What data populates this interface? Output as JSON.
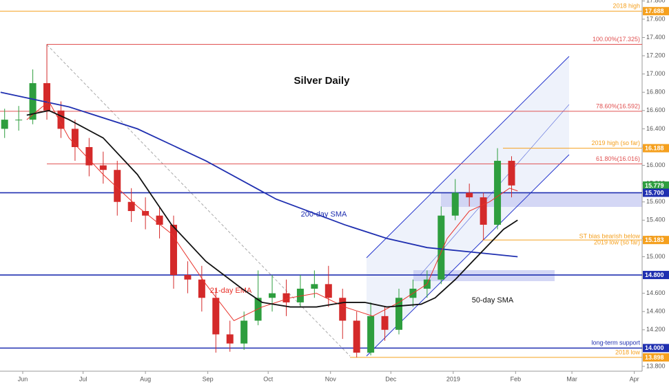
{
  "chart_data": {
    "type": "candlestick",
    "title": "Silver Daily",
    "x": [
      -9,
      -2,
      5,
      12,
      19,
      26,
      33,
      40,
      47,
      54,
      61,
      68,
      75,
      82,
      89,
      96,
      103,
      110,
      117,
      124,
      131,
      138,
      145,
      152,
      159,
      166,
      173,
      180,
      187,
      194,
      201,
      208,
      215,
      222,
      229,
      236,
      243
    ],
    "open": [
      16.4,
      16.5,
      16.5,
      16.9,
      16.6,
      16.4,
      16.2,
      16.0,
      15.95,
      15.6,
      15.5,
      15.45,
      15.35,
      14.8,
      14.75,
      14.55,
      14.15,
      14.05,
      14.3,
      14.55,
      14.6,
      14.5,
      14.65,
      14.7,
      14.55,
      14.3,
      13.95,
      14.35,
      14.2,
      14.55,
      14.65,
      14.75,
      15.45,
      15.7,
      15.65,
      15.35,
      16.05
    ],
    "high": [
      16.62,
      16.65,
      17.05,
      17.325,
      16.7,
      16.5,
      16.3,
      16.15,
      16.05,
      15.75,
      15.65,
      15.55,
      15.45,
      14.95,
      14.9,
      14.65,
      14.3,
      14.4,
      14.85,
      14.8,
      14.75,
      14.8,
      14.85,
      14.9,
      14.65,
      14.4,
      14.5,
      14.45,
      14.65,
      14.75,
      14.85,
      15.55,
      15.85,
      15.8,
      15.7,
      16.188,
      16.1
    ],
    "low": [
      16.3,
      16.38,
      16.45,
      16.5,
      16.3,
      16.05,
      15.88,
      15.8,
      15.45,
      15.38,
      15.3,
      15.2,
      14.65,
      14.6,
      14.4,
      13.95,
      13.96,
      13.98,
      14.25,
      14.4,
      14.35,
      14.45,
      14.55,
      14.45,
      14.1,
      13.898,
      13.92,
      14.08,
      14.15,
      14.45,
      14.55,
      14.7,
      15.4,
      15.55,
      15.183,
      15.3,
      15.65
    ],
    "close": [
      16.5,
      16.5,
      16.9,
      16.6,
      16.4,
      16.2,
      16.0,
      15.95,
      15.6,
      15.5,
      15.45,
      15.35,
      14.8,
      14.75,
      14.55,
      14.15,
      14.05,
      14.3,
      14.55,
      14.6,
      14.5,
      14.65,
      14.7,
      14.55,
      14.3,
      13.95,
      14.35,
      14.2,
      14.55,
      14.65,
      14.75,
      15.45,
      15.7,
      15.65,
      15.35,
      16.05,
      15.78
    ],
    "up_color": "#2e9e3e",
    "down_color": "#d42a2a",
    "series": [
      {
        "name": "200-day SMA",
        "color": "#1f2fb0",
        "x": [
          -11,
          23,
          57,
          91,
          126,
          160,
          181,
          201,
          228,
          246
        ],
        "values": [
          16.8,
          16.64,
          16.4,
          16.05,
          15.63,
          15.35,
          15.2,
          15.1,
          15.04,
          15.0
        ]
      },
      {
        "name": "21-day EMA",
        "color": "#e8322a",
        "x": [
          2,
          13,
          23,
          40,
          57,
          74,
          91,
          105,
          119,
          133,
          146,
          160,
          174,
          187,
          201,
          211,
          222,
          232,
          242,
          246
        ],
        "values": [
          16.5,
          16.7,
          16.3,
          15.9,
          15.55,
          15.25,
          14.7,
          14.3,
          14.45,
          14.55,
          14.6,
          14.45,
          14.35,
          14.5,
          14.7,
          15.2,
          15.5,
          15.6,
          15.75,
          15.72
        ]
      },
      {
        "name": "50-day SMA",
        "color": "#111111",
        "x": [
          2,
          13,
          23,
          40,
          57,
          74,
          91,
          109,
          119,
          133,
          146,
          160,
          170,
          181,
          198,
          205,
          215,
          228,
          239,
          246
        ],
        "values": [
          16.55,
          16.6,
          16.5,
          16.3,
          15.9,
          15.35,
          14.95,
          14.65,
          14.5,
          14.45,
          14.45,
          14.5,
          14.5,
          14.45,
          14.48,
          14.55,
          14.75,
          15.05,
          15.3,
          15.4
        ]
      }
    ],
    "levels": [
      {
        "value": 17.688,
        "label": "17.688",
        "name": "2018 high",
        "color": "#f5a01e"
      },
      {
        "value": 17.325,
        "name": "100.00%(17.325)",
        "color": "#e05050"
      },
      {
        "value": 16.592,
        "name": "78.60%(16.592)",
        "color": "#e05050"
      },
      {
        "value": 16.188,
        "label": "16.188",
        "name": "2019 high (so far)",
        "color": "#f5a01e"
      },
      {
        "value": 16.016,
        "name": "61.80%(16.016)",
        "color": "#e05050"
      },
      {
        "value": 15.779,
        "label": "15.779",
        "color": "#2e9e3e"
      },
      {
        "value": 15.7,
        "label": "15.700",
        "color": "#1f2fb0"
      },
      {
        "value": 15.183,
        "label": "15.183",
        "name": [
          "ST bias bearish below",
          "2019 low (so far)"
        ],
        "color": "#f5a01e"
      },
      {
        "value": 14.8,
        "label": "14.800",
        "color": "#1f2fb0"
      },
      {
        "value": 14.0,
        "label": "14.000",
        "name": "long-term support",
        "color": "#1f2fb0"
      },
      {
        "value": 13.898,
        "label": "13.898",
        "name": "2018 low",
        "color": "#f5a01e"
      }
    ],
    "xlim": [
      -11.3,
      307.9
    ],
    "xticks": [
      {
        "value": 0,
        "label": "Jun"
      },
      {
        "value": 30,
        "label": "Jul"
      },
      {
        "value": 61,
        "label": "Aug"
      },
      {
        "value": 92,
        "label": "Sep"
      },
      {
        "value": 122,
        "label": "Oct"
      },
      {
        "value": 153,
        "label": "Nov"
      },
      {
        "value": 183,
        "label": "Dec"
      },
      {
        "value": 214,
        "label": "2019"
      },
      {
        "value": 245,
        "label": "Feb"
      },
      {
        "value": 273,
        "label": "Mar"
      },
      {
        "value": 304,
        "label": "Apr"
      }
    ],
    "ylim": [
      13.747,
      17.81
    ],
    "yticks": [
      {
        "value": 13.8,
        "label": "13.800"
      },
      {
        "value": 14.0,
        "label": "14.000"
      },
      {
        "value": 14.2,
        "label": "14.200"
      },
      {
        "value": 14.4,
        "label": "14.400"
      },
      {
        "value": 14.6,
        "label": "14.600"
      },
      {
        "value": 14.8,
        "label": "14.800"
      },
      {
        "value": 15.0,
        "label": "15.000"
      },
      {
        "value": 15.2,
        "label": "15.200"
      },
      {
        "value": 15.4,
        "label": "15.400"
      },
      {
        "value": 15.6,
        "label": "15.600"
      },
      {
        "value": 15.8,
        "label": "15.800"
      },
      {
        "value": 16.0,
        "label": "16.000"
      },
      {
        "value": 16.2,
        "label": "16.200"
      },
      {
        "value": 16.4,
        "label": "16.400"
      },
      {
        "value": 16.6,
        "label": "16.600"
      },
      {
        "value": 16.8,
        "label": "16.800"
      },
      {
        "value": 17.0,
        "label": "17.000"
      },
      {
        "value": 17.2,
        "label": "17.200"
      },
      {
        "value": 17.4,
        "label": "17.400"
      },
      {
        "value": 17.6,
        "label": "17.600"
      },
      {
        "value": 17.8,
        "label": "17.800"
      }
    ]
  }
}
